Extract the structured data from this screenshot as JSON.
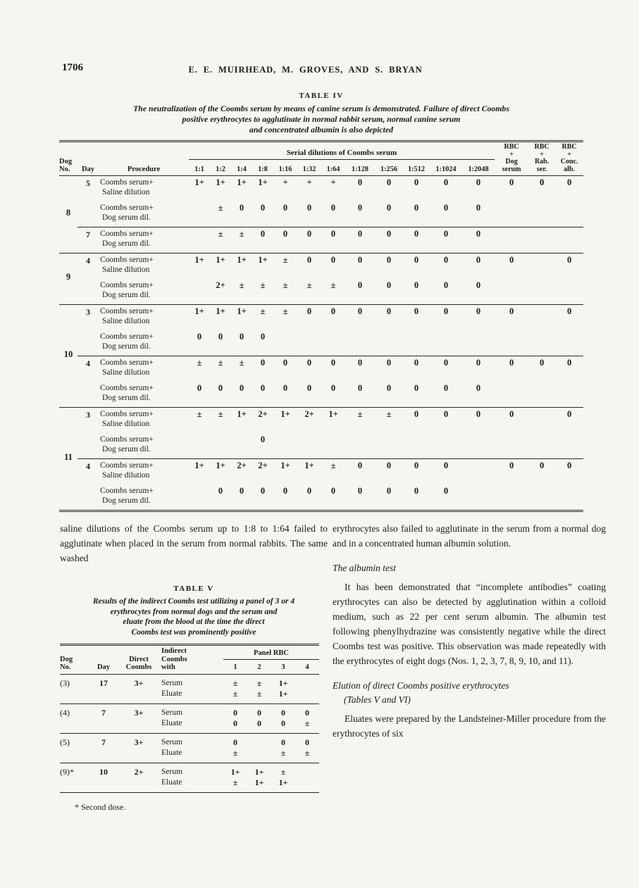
{
  "page": {
    "number": "1706",
    "running_head": "E. E. MUIRHEAD, M. GROVES, AND S. BRYAN"
  },
  "table4": {
    "label": "TABLE IV",
    "caption": [
      "The neutralization of the Coombs serum by means of canine serum is demonstrated.  Failure of direct Coombs",
      "positive erythrocytes to agglutinate in normal rabbit serum, normal canine serum",
      "and concentrated albumin is also depicted"
    ],
    "header": {
      "dog_no": [
        "Dog",
        "No."
      ],
      "day": "Day",
      "procedure": "Procedure",
      "serial_span": "Serial dilutions of Coombs serum",
      "dilutions": [
        "1:1",
        "1:2",
        "1:4",
        "1:8",
        "1:16",
        "1:32",
        "1:64",
        "1:128",
        "1:256",
        "1:512",
        "1:1024",
        "1:2048"
      ],
      "rbc": [
        [
          "RBC",
          "+",
          "Dog",
          "serum"
        ],
        [
          "RBC",
          "+",
          "Rab.",
          "ser."
        ],
        [
          "RBC",
          "+",
          "Conc.",
          "alb."
        ]
      ]
    },
    "groups": [
      {
        "dog": "8",
        "rows": [
          {
            "day": "5",
            "proc": [
              "Coombs serum+",
              "Saline dilution"
            ],
            "dil": [
              "1+",
              "1+",
              "1+",
              "1+",
              "+",
              "+",
              "+",
              "0",
              "0",
              "0",
              "0",
              "0"
            ],
            "rbc": [
              "0",
              "0",
              "0"
            ],
            "sep": false
          },
          {
            "day": "",
            "proc": [
              "Coombs serum+",
              "Dog serum dil."
            ],
            "dil": [
              "",
              "±",
              "0",
              "0",
              "0",
              "0",
              "0",
              "0",
              "0",
              "0",
              "0",
              "0"
            ],
            "rbc": [
              "",
              "",
              ""
            ],
            "sep": false
          },
          {
            "day": "7",
            "proc": [
              "Coombs serum+",
              "Dog serum dil."
            ],
            "dil": [
              "",
              "±",
              "±",
              "0",
              "0",
              "0",
              "0",
              "0",
              "0",
              "0",
              "0",
              "0"
            ],
            "rbc": [
              "",
              "",
              ""
            ],
            "sep": true
          }
        ]
      },
      {
        "dog": "9",
        "rows": [
          {
            "day": "4",
            "proc": [
              "Coombs serum+",
              "Saline dilution"
            ],
            "dil": [
              "1+",
              "1+",
              "1+",
              "1+",
              "±",
              "0",
              "0",
              "0",
              "0",
              "0",
              "0",
              "0"
            ],
            "rbc": [
              "0",
              "",
              "0"
            ],
            "sep": false
          },
          {
            "day": "",
            "proc": [
              "Coombs serum+",
              "Dog serum dil."
            ],
            "dil": [
              "",
              "2+",
              "±",
              "±",
              "±",
              "±",
              "±",
              "0",
              "0",
              "0",
              "0",
              "0"
            ],
            "rbc": [
              "",
              "",
              ""
            ],
            "sep": false
          }
        ]
      },
      {
        "dog": "10",
        "rows": [
          {
            "day": "3",
            "proc": [
              "Coombs serum+",
              "Saline dilution"
            ],
            "dil": [
              "1+",
              "1+",
              "1+",
              "±",
              "±",
              "0",
              "0",
              "0",
              "0",
              "0",
              "0",
              "0"
            ],
            "rbc": [
              "0",
              "",
              "0"
            ],
            "sep": false
          },
          {
            "day": "",
            "proc": [
              "Coombs serum+",
              "Dog serum dil."
            ],
            "dil": [
              "0",
              "0",
              "0",
              "0",
              "",
              "",
              "",
              "",
              "",
              "",
              "",
              ""
            ],
            "rbc": [
              "",
              "",
              ""
            ],
            "sep": false
          },
          {
            "day": "4",
            "proc": [
              "Coombs serum+",
              "Saline dilution"
            ],
            "dil": [
              "±",
              "±",
              "±",
              "0",
              "0",
              "0",
              "0",
              "0",
              "0",
              "0",
              "0",
              "0"
            ],
            "rbc": [
              "0",
              "0",
              "0"
            ],
            "sep": true
          },
          {
            "day": "",
            "proc": [
              "Coombs serum+",
              "Dog serum dil."
            ],
            "dil": [
              "0",
              "0",
              "0",
              "0",
              "0",
              "0",
              "0",
              "0",
              "0",
              "0",
              "0",
              "0"
            ],
            "rbc": [
              "",
              "",
              ""
            ],
            "sep": false
          }
        ]
      },
      {
        "dog": "11",
        "rows": [
          {
            "day": "3",
            "proc": [
              "Coombs serum+",
              "Saline dilution"
            ],
            "dil": [
              "±",
              "±",
              "1+",
              "2+",
              "1+",
              "2+",
              "1+",
              "±",
              "±",
              "0",
              "0",
              "0"
            ],
            "rbc": [
              "0",
              "",
              "0"
            ],
            "sep": false
          },
          {
            "day": "",
            "proc": [
              "Coombs serum+",
              "Dog serum dil."
            ],
            "dil": [
              "",
              "",
              "",
              "0",
              "",
              "",
              "",
              "",
              "",
              "",
              "",
              ""
            ],
            "rbc": [
              "",
              "",
              ""
            ],
            "sep": false
          },
          {
            "day": "4",
            "proc": [
              "Coombs serum+",
              "Saline dilution"
            ],
            "dil": [
              "1+",
              "1+",
              "2+",
              "2+",
              "1+",
              "1+",
              "±",
              "0",
              "0",
              "0",
              "0",
              ""
            ],
            "rbc": [
              "0",
              "0",
              "0"
            ],
            "sep": true
          },
          {
            "day": "",
            "proc": [
              "Coombs serum+",
              "Dog serum dil."
            ],
            "dil": [
              "",
              "0",
              "0",
              "0",
              "0",
              "0",
              "0",
              "0",
              "0",
              "0",
              "0",
              ""
            ],
            "rbc": [
              "",
              "",
              ""
            ],
            "sep": false
          }
        ]
      }
    ]
  },
  "body": {
    "left_para": "saline dilutions of the Coombs serum up to 1:8 to 1:64 failed to agglutinate when placed in the serum from normal rabbits.  The same washed",
    "right_para1": "erythrocytes also failed to agglutinate in the serum from a normal dog and in a concentrated human albumin solution.",
    "albumin_heading": "The albumin test",
    "albumin_para": "It has been demonstrated that “incomplete antibodies” coating erythrocytes can also be detected by agglutination within a colloid medium, such as 22 per cent serum albumin.  The albumin test following phenylhydrazine was consistently negative while the direct Coombs test was positive.  This observation was made repeatedly with the erythrocytes of eight dogs (Nos. 1, 2, 3, 7, 8, 9, 10, and 11).",
    "elution_heading_line1": "Elution of direct Coombs positive erythrocytes",
    "elution_heading_line2": "(Tables V and VI)",
    "elution_para": "Eluates were prepared by the Landsteiner-Miller procedure from the erythrocytes of six"
  },
  "table5": {
    "label": "TABLE V",
    "caption": [
      "Results of the indirect Coombs test utilizing a panel of 3 or 4",
      "erythrocytes from normal dogs and the serum and",
      "eluate from the blood at the time the direct",
      "Coombs test was prominently positive"
    ],
    "header": {
      "dog_no": [
        "Dog",
        "No."
      ],
      "day": "Day",
      "direct": [
        "Direct",
        "Coombs"
      ],
      "indirect": [
        "Indirect",
        "Coombs",
        "with"
      ],
      "panel": "Panel RBC",
      "panel_nums": [
        "1",
        "2",
        "3",
        "4"
      ]
    },
    "row_labels": {
      "serum": "Serum",
      "eluate": "Eluate"
    },
    "rows": [
      {
        "dog": "(3)",
        "day": "17",
        "direct": "3+",
        "serum": [
          "±",
          "±",
          "1+",
          ""
        ],
        "eluate": [
          "±",
          "±",
          "1+",
          ""
        ]
      },
      {
        "dog": "(4)",
        "day": "7",
        "direct": "3+",
        "serum": [
          "0",
          "0",
          "0",
          "0"
        ],
        "eluate": [
          "0",
          "0",
          "0",
          "±"
        ]
      },
      {
        "dog": "(5)",
        "day": "7",
        "direct": "3+",
        "serum": [
          "0",
          "",
          "0",
          "0"
        ],
        "eluate": [
          "±",
          "",
          "±",
          "±"
        ]
      },
      {
        "dog": "(9)*",
        "day": "10",
        "direct": "2+",
        "serum": [
          "1+",
          "1+",
          "±",
          ""
        ],
        "eluate": [
          "±",
          "1+",
          "1+",
          ""
        ]
      }
    ],
    "footnote": "* Second dose."
  },
  "colors": {
    "paper": "#f7f5ef",
    "ink": "#1c1a16",
    "rule": "#2b2722"
  }
}
